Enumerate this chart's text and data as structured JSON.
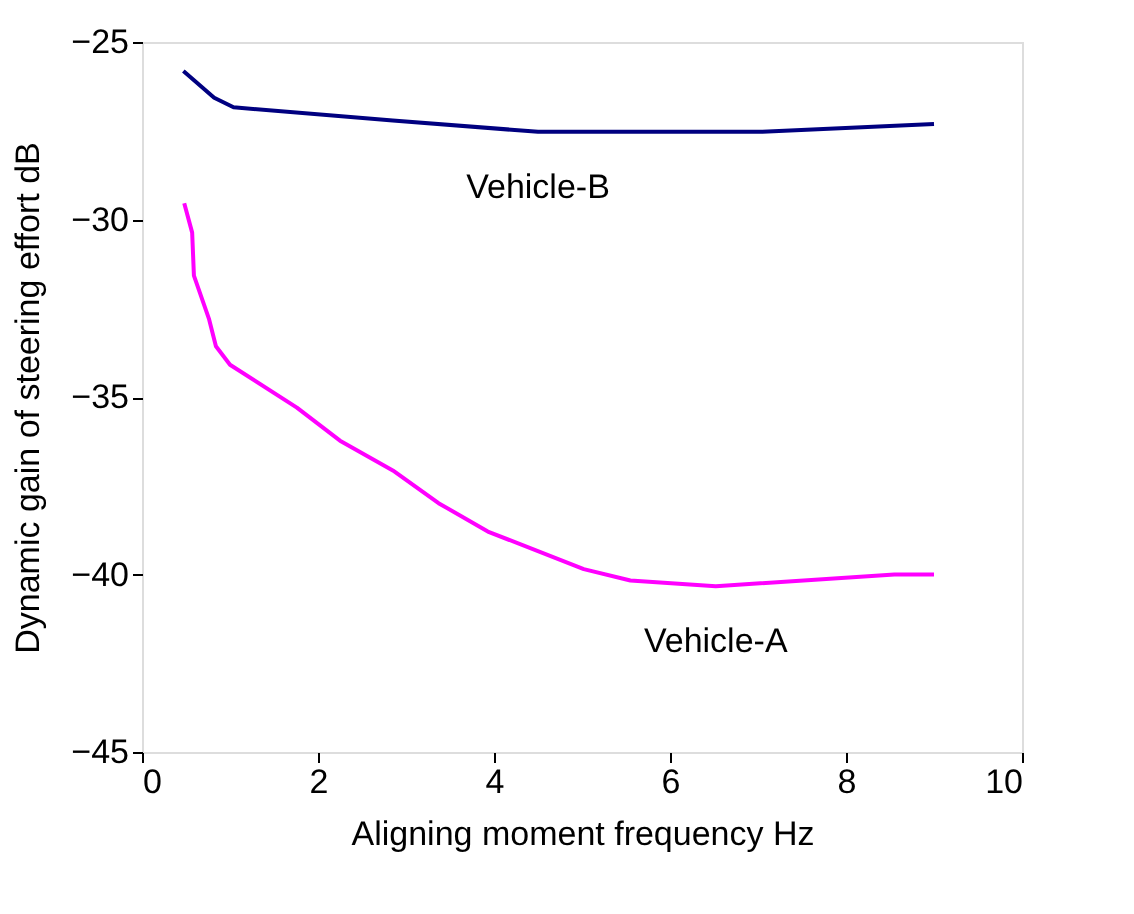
{
  "chart_data": {
    "type": "line",
    "xlabel": "Aligning moment frequency  Hz",
    "ylabel": "Dynamic gain of steering effort  dB",
    "xlim": [
      0,
      10
    ],
    "xticks": [
      0,
      2,
      4,
      6,
      8,
      10
    ],
    "ylim": [
      -45,
      -25
    ],
    "yticks": [
      -45,
      -40,
      -35,
      -30,
      -25
    ],
    "grid": false,
    "marker": "none",
    "line_style": "solid",
    "series": [
      {
        "name": "Vehicle-B",
        "color": "#000080",
        "x": [
          0.47,
          0.82,
          1.04,
          2.85,
          4.5,
          7.05,
          9.0
        ],
        "values": [
          -25.82,
          -26.57,
          -26.84,
          -27.21,
          -27.53,
          -27.53,
          -27.31
        ]
      },
      {
        "name": "Vehicle-A",
        "color": "#ff00ff",
        "x": [
          0.48,
          0.57,
          0.59,
          0.76,
          0.84,
          1.0,
          1.76,
          2.25,
          2.85,
          3.37,
          3.93,
          5.02,
          5.55,
          6.52,
          8.55,
          9.0
        ],
        "values": [
          -29.54,
          -30.37,
          -31.58,
          -32.79,
          -33.57,
          -34.09,
          -35.3,
          -36.23,
          -37.07,
          -37.99,
          -38.79,
          -39.85,
          -40.17,
          -40.33,
          -40.0,
          -40.0
        ]
      }
    ]
  }
}
